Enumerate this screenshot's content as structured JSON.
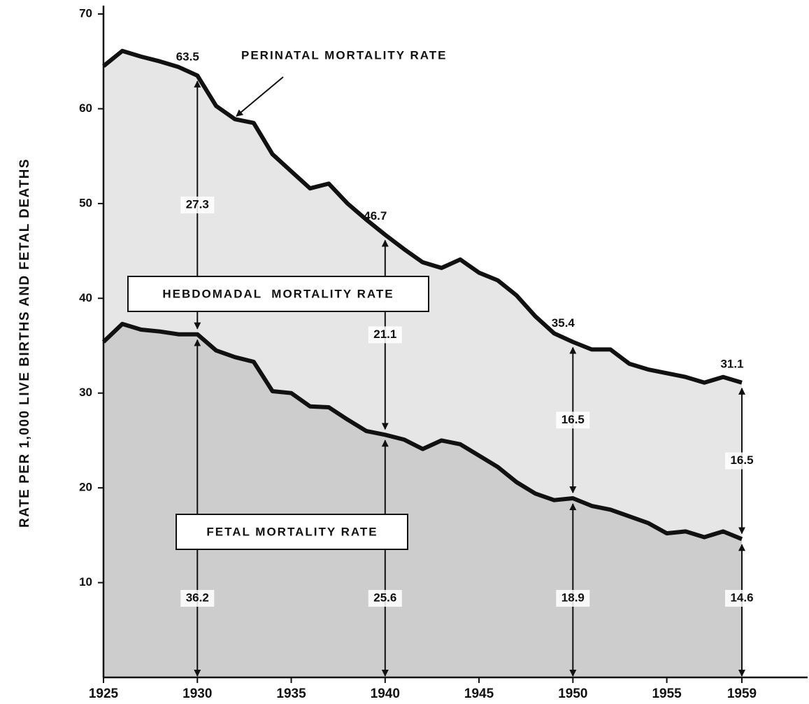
{
  "chart_data": {
    "type": "area",
    "ylabel": "RATE PER 1,000 LIVE BIRTHS AND FETAL DEATHS",
    "x": [
      1925,
      1926,
      1927,
      1928,
      1929,
      1930,
      1931,
      1932,
      1933,
      1934,
      1935,
      1936,
      1937,
      1938,
      1939,
      1940,
      1941,
      1942,
      1943,
      1944,
      1945,
      1946,
      1947,
      1948,
      1949,
      1950,
      1951,
      1952,
      1953,
      1954,
      1955,
      1956,
      1957,
      1958,
      1959
    ],
    "series": [
      {
        "name": "PERINATAL MORTALITY RATE",
        "color": "#e6e6e6",
        "values": [
          64.5,
          66.1,
          65.5,
          65.0,
          64.4,
          63.5,
          60.3,
          58.9,
          58.5,
          55.2,
          53.4,
          51.6,
          52.1,
          50.0,
          48.3,
          46.7,
          45.2,
          43.8,
          43.2,
          44.1,
          42.7,
          41.9,
          40.3,
          38.1,
          36.3,
          35.4,
          34.6,
          34.6,
          33.1,
          32.5,
          32.1,
          31.7,
          31.1,
          31.7,
          31.1
        ]
      },
      {
        "name": "FETAL MORTALITY RATE",
        "color": "#cdcdcd",
        "values": [
          35.4,
          37.3,
          36.7,
          36.5,
          36.2,
          36.2,
          34.5,
          33.8,
          33.3,
          30.2,
          30.0,
          28.6,
          28.5,
          27.2,
          26.0,
          25.6,
          25.1,
          24.1,
          25.0,
          24.6,
          23.4,
          22.2,
          20.6,
          19.4,
          18.7,
          18.9,
          18.1,
          17.7,
          17.0,
          16.3,
          15.2,
          15.4,
          14.8,
          15.4,
          14.6
        ]
      }
    ],
    "band_label": "HEBDOMADAL  MORTALITY RATE",
    "annotations": {
      "x": [
        1930,
        1940,
        1950,
        1959
      ],
      "perinatal": [
        63.5,
        46.7,
        35.4,
        31.1
      ],
      "hebdomadal": [
        27.3,
        21.1,
        16.5,
        16.5
      ],
      "fetal": [
        36.2,
        25.6,
        18.9,
        14.6
      ]
    },
    "xlim": [
      1925,
      1962.5
    ],
    "xticks": [
      1925,
      1930,
      1935,
      1940,
      1945,
      1950,
      1955,
      1959
    ],
    "ylim": [
      0,
      70
    ],
    "yticks": [
      10,
      20,
      30,
      40,
      50,
      60,
      70
    ]
  }
}
